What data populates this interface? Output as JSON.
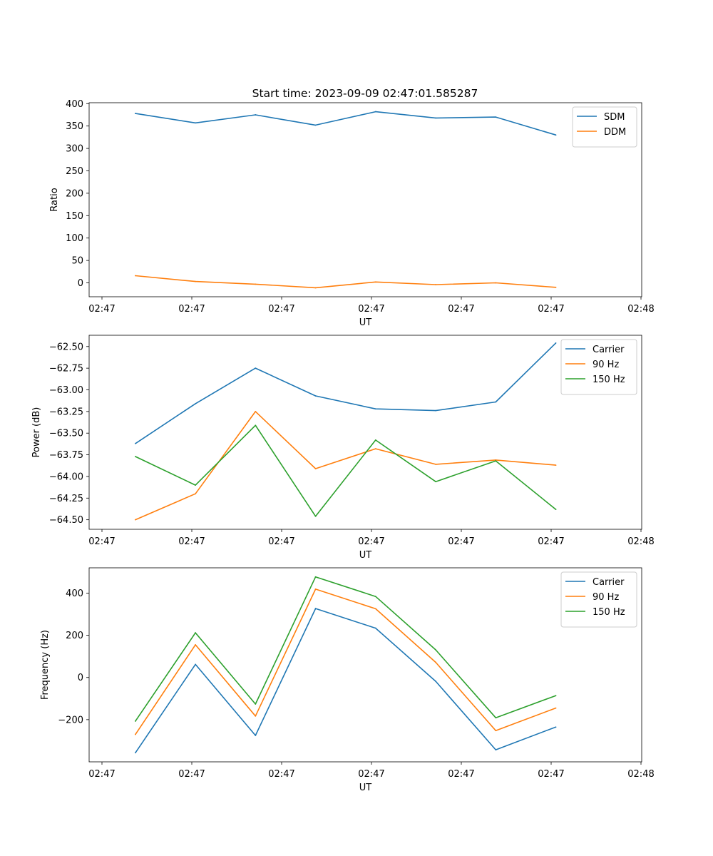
{
  "figure": {
    "title": "Start time: 2023-09-09 02:47:01.585287"
  },
  "chart_data": [
    {
      "type": "line",
      "title": "Start time: 2023-09-09 02:47:01.585287",
      "xlabel": "UT",
      "ylabel": "Ratio",
      "x_tick_labels": [
        "02:47",
        "02:47",
        "02:47",
        "02:47",
        "02:47",
        "02:47",
        "02:48"
      ],
      "y_ticks": [
        0,
        50,
        100,
        150,
        200,
        250,
        300,
        350,
        400
      ],
      "ylim": [
        -31,
        402
      ],
      "legend_position": "top-right",
      "x": [
        1,
        2,
        3,
        4,
        5,
        6,
        7,
        8
      ],
      "xlim": [
        0.23,
        9.43
      ],
      "series": [
        {
          "name": "SDM",
          "color": "#1f77b4",
          "values": [
            378,
            357,
            375,
            352,
            382,
            368,
            370,
            330
          ]
        },
        {
          "name": "DDM",
          "color": "#ff7f0e",
          "values": [
            16,
            3,
            -3,
            -11,
            2,
            -4,
            0,
            -10
          ]
        }
      ]
    },
    {
      "type": "line",
      "title": "",
      "xlabel": "UT",
      "ylabel": "Power (dB)",
      "x_tick_labels": [
        "02:47",
        "02:47",
        "02:47",
        "02:47",
        "02:47",
        "02:47",
        "02:48"
      ],
      "y_ticks": [
        -64.5,
        -64.25,
        -64.0,
        -63.75,
        -63.5,
        -63.25,
        -63.0,
        -62.75,
        -62.5
      ],
      "y_tick_labels": [
        "−64.50",
        "−64.25",
        "−64.00",
        "−63.75",
        "−63.50",
        "−63.25",
        "−63.00",
        "−62.75",
        "−62.50"
      ],
      "ylim": [
        -64.61,
        -62.37
      ],
      "legend_position": "top-right",
      "x": [
        1,
        2,
        3,
        4,
        5,
        6,
        7,
        8
      ],
      "xlim": [
        0.23,
        9.43
      ],
      "series": [
        {
          "name": "Carrier",
          "color": "#1f77b4",
          "values": [
            -63.62,
            -63.16,
            -62.75,
            -63.07,
            -63.22,
            -63.24,
            -63.14,
            -62.46
          ]
        },
        {
          "name": "90 Hz",
          "color": "#ff7f0e",
          "values": [
            -64.5,
            -64.2,
            -63.25,
            -63.91,
            -63.68,
            -63.86,
            -63.81,
            -63.87
          ]
        },
        {
          "name": "150 Hz",
          "color": "#2ca02c",
          "values": [
            -63.77,
            -64.1,
            -63.41,
            -64.46,
            -63.58,
            -64.06,
            -63.82,
            -64.38
          ]
        }
      ]
    },
    {
      "type": "line",
      "title": "",
      "xlabel": "UT",
      "ylabel": "Frequency (Hz)",
      "x_tick_labels": [
        "02:47",
        "02:47",
        "02:47",
        "02:47",
        "02:47",
        "02:47",
        "02:48"
      ],
      "y_ticks": [
        -200,
        0,
        200,
        400
      ],
      "y_tick_labels": [
        "−200",
        "0",
        "200",
        "400"
      ],
      "ylim": [
        -400,
        520
      ],
      "legend_position": "top-right",
      "x": [
        1,
        2,
        3,
        4,
        5,
        6,
        7,
        8
      ],
      "xlim": [
        0.23,
        9.43
      ],
      "series": [
        {
          "name": "Carrier",
          "color": "#1f77b4",
          "values": [
            -357,
            62,
            -275,
            327,
            234,
            -18,
            -343,
            -235
          ]
        },
        {
          "name": "90 Hz",
          "color": "#ff7f0e",
          "values": [
            -270,
            155,
            -183,
            419,
            326,
            72,
            -252,
            -145
          ]
        },
        {
          "name": "150 Hz",
          "color": "#2ca02c",
          "values": [
            -207,
            212,
            -126,
            477,
            384,
            131,
            -191,
            -86
          ]
        }
      ]
    }
  ]
}
